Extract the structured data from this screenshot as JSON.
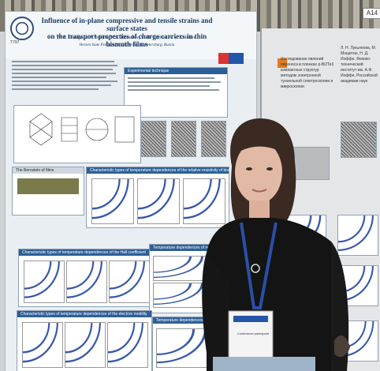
{
  "poster_main": {
    "id": "T797",
    "title_line1": "Influence of in-plane compressive and tensile strains and surface states",
    "title_line2": "on the transport properties of charge carriers in thin bismuth films",
    "authors": "V. A. Gerega, A. V. Suslov, V. A. Komarov, V. M. Grabov, A. V. Kolobov",
    "affiliation": "Herzen State Pedagogical University, St. Petersburg, Russia",
    "box_experimental": "Experimental technique",
    "box_fermi": "The Bernstein of films",
    "box_temp": "Characteristic types of temperature dependences of the relative resistivity of bismuth films",
    "box_hall": "Characteristic types of temperature dependences of the Hall coefficient",
    "box_resist": "Temperature dependences of resistivity for bismuth films",
    "box_mobility": "Characteristic types of temperature dependences of the electron mobility",
    "box_bottom": "Temperature dependences of the charge carriers concentration"
  },
  "poster_right": {
    "tag": "A14",
    "title": "Исследование явлений переноса в пленках p-Bi2Te3 компактных структур методом электронной туннельной спектроскопии и микроскопии",
    "authors": "Л. Н. Лукьянова, М. Мощетин, Н. Д. Иоффе, Физико-технический институт им. А.Ф. Иоффе, Российской академии наук"
  },
  "badge": {
    "text": "Conference participant"
  },
  "colors": {
    "poster_blue": "#2d5f96",
    "shirt": "#141414",
    "lanyard": "#2b4fa8",
    "hair": "#3a2a22"
  }
}
